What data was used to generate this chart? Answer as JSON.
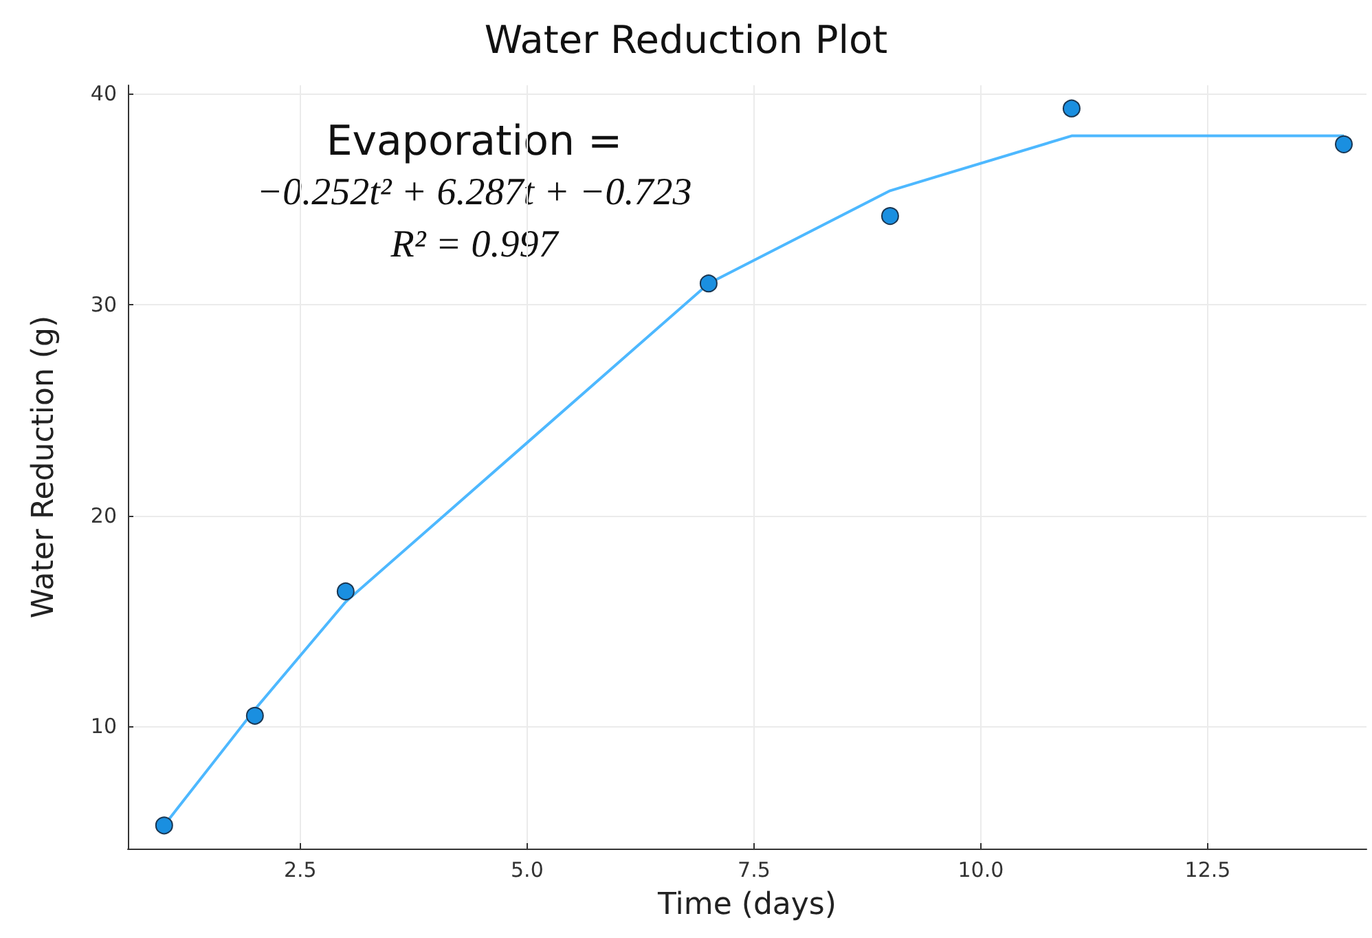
{
  "chart_data": {
    "type": "scatter",
    "title": "Water Reduction Plot",
    "xlabel": "Time (days)",
    "ylabel": "Water Reduction (g)",
    "x": [
      1,
      2,
      3,
      7,
      9,
      11,
      14
    ],
    "series": [
      {
        "color": "#1a8fe0",
        "values": [
          5.3,
          10.5,
          16.4,
          31.0,
          34.2,
          39.3,
          37.6
        ],
        "marker": "circle"
      },
      {
        "type": "line",
        "color": "#4db8ff",
        "x": [
          1,
          2,
          3,
          7,
          9,
          11,
          14
        ],
        "values": [
          5.3,
          10.8,
          15.9,
          31.0,
          35.4,
          38.0,
          38.0
        ],
        "marker": "none",
        "line_style": "solid"
      }
    ],
    "annotations": [
      "Evaporation =",
      "−0.252t² + 6.287t + −0.723",
      "R² = 0.997"
    ],
    "xlim": [
      0.6,
      14.25
    ],
    "ylim": [
      4.2,
      40.4
    ],
    "xticks": [
      {
        "value": 2.5,
        "label": "2.5"
      },
      {
        "value": 5,
        "label": "5.0"
      },
      {
        "value": 7.5,
        "label": "7.5"
      },
      {
        "value": 10,
        "label": "10.0"
      },
      {
        "value": 12.5,
        "label": "12.5"
      }
    ],
    "yticks": [
      10,
      20,
      30,
      40
    ],
    "grid": true
  }
}
